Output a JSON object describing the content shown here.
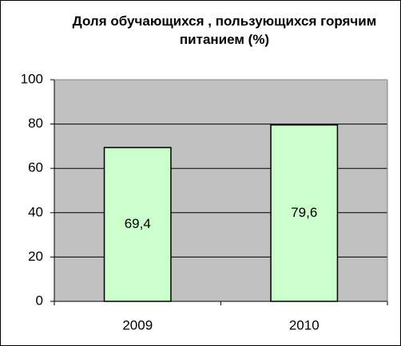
{
  "chart_data": {
    "type": "bar",
    "title": "Доля обучающихся , пользующихся горячим питанием (%)",
    "categories": [
      "2009",
      "2010"
    ],
    "values": [
      69.4,
      79.6
    ],
    "value_labels": [
      "69,4",
      "79,6"
    ],
    "color": "#ccffcc",
    "ylim": [
      0,
      100
    ],
    "yticks": [
      0,
      20,
      40,
      60,
      80,
      100
    ],
    "grid": true
  }
}
